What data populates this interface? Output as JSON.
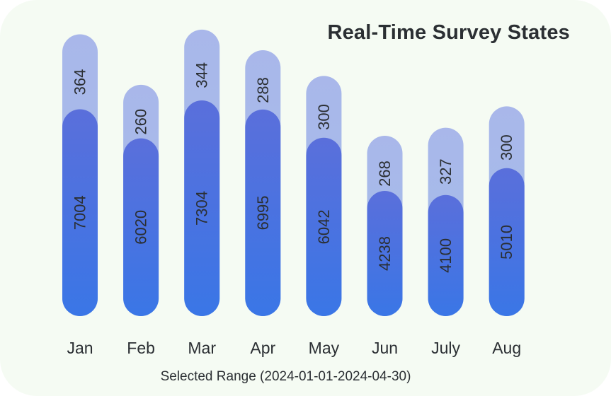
{
  "chart_data": {
    "type": "bar",
    "stacked": true,
    "title": "Real-Time Survey States",
    "subtitle": "Selected Range (2024-01-01-2024-04-30)",
    "categories": [
      "Jan",
      "Feb",
      "Mar",
      "Apr",
      "May",
      "Jun",
      "July",
      "Aug"
    ],
    "series": [
      {
        "values": [
          7004,
          6020,
          7304,
          6995,
          6042,
          4238,
          4100,
          5010
        ],
        "color": "#4a70de"
      },
      {
        "values": [
          364,
          260,
          344,
          288,
          300,
          268,
          327,
          300
        ],
        "color": "#a7bce9"
      }
    ],
    "grid": false,
    "legend": "none"
  }
}
